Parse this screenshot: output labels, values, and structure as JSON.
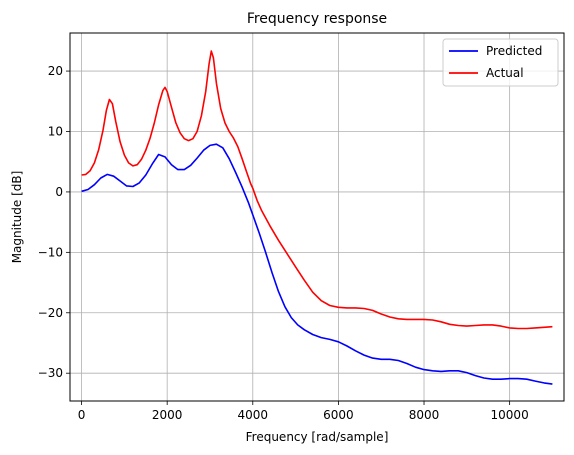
{
  "chart_data": {
    "type": "line",
    "title": "Frequency response",
    "xlabel": "Frequency [rad/sample]",
    "ylabel": "Magnitude [dB]",
    "xlim": [
      -270,
      11270
    ],
    "ylim": [
      -34.6,
      26.3
    ],
    "xticks": [
      0,
      2000,
      4000,
      6000,
      8000,
      10000
    ],
    "yticks": [
      -30,
      -20,
      -10,
      0,
      10,
      20
    ],
    "grid": true,
    "legend_position": "top-right",
    "series": [
      {
        "name": "Predicted",
        "color": "#0000ff",
        "points": [
          [
            0,
            0.1
          ],
          [
            150,
            0.4
          ],
          [
            300,
            1.2
          ],
          [
            450,
            2.3
          ],
          [
            600,
            2.9
          ],
          [
            750,
            2.6
          ],
          [
            900,
            1.8
          ],
          [
            1050,
            1.0
          ],
          [
            1200,
            0.9
          ],
          [
            1350,
            1.5
          ],
          [
            1500,
            2.8
          ],
          [
            1650,
            4.6
          ],
          [
            1800,
            6.2
          ],
          [
            1950,
            5.8
          ],
          [
            2100,
            4.5
          ],
          [
            2250,
            3.7
          ],
          [
            2400,
            3.7
          ],
          [
            2550,
            4.4
          ],
          [
            2700,
            5.6
          ],
          [
            2850,
            6.9
          ],
          [
            3000,
            7.7
          ],
          [
            3150,
            7.9
          ],
          [
            3300,
            7.3
          ],
          [
            3450,
            5.5
          ],
          [
            3600,
            3.2
          ],
          [
            3750,
            0.8
          ],
          [
            3900,
            -1.8
          ],
          [
            4000,
            -3.8
          ],
          [
            4150,
            -6.8
          ],
          [
            4300,
            -10.0
          ],
          [
            4450,
            -13.4
          ],
          [
            4600,
            -16.5
          ],
          [
            4750,
            -19.0
          ],
          [
            4900,
            -20.8
          ],
          [
            5050,
            -22.0
          ],
          [
            5200,
            -22.8
          ],
          [
            5400,
            -23.6
          ],
          [
            5600,
            -24.1
          ],
          [
            5800,
            -24.4
          ],
          [
            6000,
            -24.8
          ],
          [
            6200,
            -25.5
          ],
          [
            6400,
            -26.3
          ],
          [
            6600,
            -27.0
          ],
          [
            6800,
            -27.5
          ],
          [
            7000,
            -27.7
          ],
          [
            7200,
            -27.7
          ],
          [
            7400,
            -27.9
          ],
          [
            7600,
            -28.4
          ],
          [
            7800,
            -29.0
          ],
          [
            8000,
            -29.4
          ],
          [
            8200,
            -29.6
          ],
          [
            8400,
            -29.7
          ],
          [
            8600,
            -29.6
          ],
          [
            8800,
            -29.6
          ],
          [
            9000,
            -29.9
          ],
          [
            9200,
            -30.4
          ],
          [
            9400,
            -30.8
          ],
          [
            9600,
            -31.0
          ],
          [
            9800,
            -31.0
          ],
          [
            10000,
            -30.9
          ],
          [
            10200,
            -30.9
          ],
          [
            10400,
            -31.0
          ],
          [
            10600,
            -31.3
          ],
          [
            10800,
            -31.6
          ],
          [
            11000,
            -31.8
          ]
        ]
      },
      {
        "name": "Actual",
        "color": "#ff0000",
        "points": [
          [
            0,
            2.8
          ],
          [
            100,
            2.9
          ],
          [
            200,
            3.5
          ],
          [
            300,
            4.8
          ],
          [
            400,
            7.0
          ],
          [
            500,
            10.2
          ],
          [
            580,
            13.5
          ],
          [
            650,
            15.3
          ],
          [
            720,
            14.6
          ],
          [
            800,
            11.6
          ],
          [
            900,
            8.3
          ],
          [
            1000,
            6.1
          ],
          [
            1100,
            4.8
          ],
          [
            1200,
            4.3
          ],
          [
            1300,
            4.5
          ],
          [
            1400,
            5.4
          ],
          [
            1500,
            6.9
          ],
          [
            1600,
            8.9
          ],
          [
            1700,
            11.4
          ],
          [
            1800,
            14.4
          ],
          [
            1900,
            16.8
          ],
          [
            1950,
            17.3
          ],
          [
            2000,
            16.6
          ],
          [
            2100,
            14.0
          ],
          [
            2200,
            11.5
          ],
          [
            2300,
            9.8
          ],
          [
            2400,
            8.8
          ],
          [
            2500,
            8.5
          ],
          [
            2600,
            8.8
          ],
          [
            2700,
            10.0
          ],
          [
            2800,
            12.6
          ],
          [
            2900,
            16.6
          ],
          [
            2980,
            21.2
          ],
          [
            3030,
            23.3
          ],
          [
            3080,
            22.2
          ],
          [
            3150,
            18.0
          ],
          [
            3250,
            13.8
          ],
          [
            3350,
            11.4
          ],
          [
            3450,
            10.0
          ],
          [
            3550,
            8.9
          ],
          [
            3650,
            7.5
          ],
          [
            3750,
            5.5
          ],
          [
            3850,
            3.4
          ],
          [
            3950,
            1.4
          ],
          [
            4000,
            0.6
          ],
          [
            4100,
            -1.4
          ],
          [
            4200,
            -3.0
          ],
          [
            4400,
            -5.6
          ],
          [
            4600,
            -8.0
          ],
          [
            4800,
            -10.2
          ],
          [
            5000,
            -12.4
          ],
          [
            5200,
            -14.6
          ],
          [
            5400,
            -16.6
          ],
          [
            5600,
            -18.0
          ],
          [
            5800,
            -18.8
          ],
          [
            6000,
            -19.1
          ],
          [
            6200,
            -19.2
          ],
          [
            6400,
            -19.2
          ],
          [
            6600,
            -19.3
          ],
          [
            6800,
            -19.6
          ],
          [
            7000,
            -20.2
          ],
          [
            7200,
            -20.7
          ],
          [
            7400,
            -21.0
          ],
          [
            7600,
            -21.1
          ],
          [
            7800,
            -21.1
          ],
          [
            8000,
            -21.1
          ],
          [
            8200,
            -21.2
          ],
          [
            8400,
            -21.5
          ],
          [
            8600,
            -21.9
          ],
          [
            8800,
            -22.1
          ],
          [
            9000,
            -22.2
          ],
          [
            9200,
            -22.1
          ],
          [
            9400,
            -22.0
          ],
          [
            9600,
            -22.0
          ],
          [
            9800,
            -22.2
          ],
          [
            10000,
            -22.5
          ],
          [
            10200,
            -22.6
          ],
          [
            10400,
            -22.6
          ],
          [
            10600,
            -22.5
          ],
          [
            10800,
            -22.4
          ],
          [
            11000,
            -22.3
          ]
        ]
      }
    ]
  }
}
